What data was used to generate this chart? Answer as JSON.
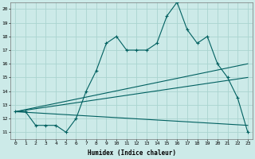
{
  "title": "",
  "xlabel": "Humidex (Indice chaleur)",
  "bg_color": "#cceae8",
  "grid_color": "#aad4d0",
  "line_color": "#006060",
  "xlim": [
    -0.5,
    23.5
  ],
  "ylim": [
    10.5,
    20.5
  ],
  "yticks": [
    11,
    12,
    13,
    14,
    15,
    16,
    17,
    18,
    19,
    20
  ],
  "xticks": [
    0,
    1,
    2,
    3,
    4,
    5,
    6,
    7,
    8,
    9,
    10,
    11,
    12,
    13,
    14,
    15,
    16,
    17,
    18,
    19,
    20,
    21,
    22,
    23
  ],
  "series1_x": [
    0,
    1,
    2,
    3,
    4,
    5,
    6,
    7,
    8,
    9,
    10,
    11,
    12,
    13,
    14,
    15,
    16,
    17,
    18,
    19,
    20,
    21,
    22,
    23
  ],
  "series1_y": [
    12.5,
    12.5,
    11.5,
    11.5,
    11.5,
    11.0,
    12.0,
    14.0,
    15.5,
    17.5,
    18.0,
    17.0,
    17.0,
    17.0,
    17.5,
    19.5,
    20.5,
    18.5,
    17.5,
    18.0,
    16.0,
    15.0,
    13.5,
    11.0
  ],
  "series2_x": [
    0,
    23
  ],
  "series2_y": [
    12.5,
    16.0
  ],
  "series3_x": [
    0,
    23
  ],
  "series3_y": [
    12.5,
    15.0
  ],
  "series4_x": [
    0,
    23
  ],
  "series4_y": [
    12.5,
    11.5
  ]
}
